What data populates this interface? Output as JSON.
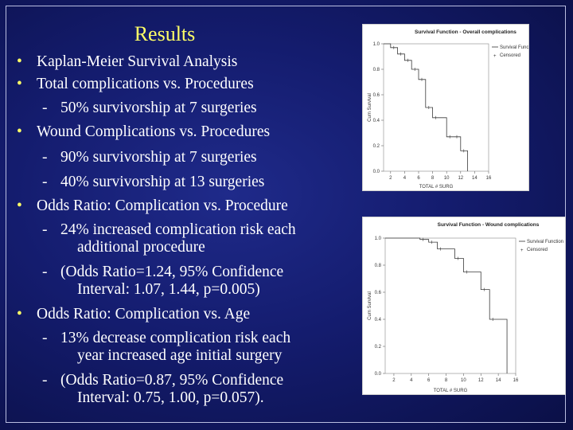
{
  "slide": {
    "title": "Results",
    "lines": {
      "b1": "Kaplan-Meier Survival Analysis",
      "b2": "Total complications vs. Procedures",
      "b2s1": "50% survivorship at 7 surgeries",
      "b3": "Wound Complications vs. Procedures",
      "b3s1": "90% survivorship at 7 surgeries",
      "b3s2": "40% survivorship at 13 surgeries",
      "b4": "Odds Ratio: Complication vs. Procedure",
      "b4s1a": "24% increased complication risk each",
      "b4s1b": "additional procedure",
      "b4s2a": "(Odds Ratio=1.24, 95% Confidence",
      "b4s2b": "Interval: 1.07, 1.44, p=0.005)",
      "b5": "Odds Ratio: Complication vs. Age",
      "b5s1a": "13% decrease complication risk each",
      "b5s1b": "year increased age initial surgery",
      "b5s2a": "(Odds Ratio=0.87, 95% Confidence",
      "b5s2b": "Interval: 0.75, 1.00, p=0.057)."
    },
    "bullet_char": "•",
    "dash_char": "-"
  },
  "chart_data": [
    {
      "type": "line",
      "title": "Survival Function - Overall complications",
      "xlabel": "TOTAL # SURG",
      "ylabel": "Cum Survival",
      "xlim": [
        1,
        16
      ],
      "ylim": [
        0,
        1.0
      ],
      "xticks": [
        "2",
        "4",
        "6",
        "8",
        "10",
        "12",
        "14",
        "16"
      ],
      "yticks": [
        "0.0",
        "0.2",
        "0.4",
        "0.6",
        "0.8",
        "1.0"
      ],
      "legend": [
        "Survival Function",
        "Censored"
      ],
      "legend_position": "top-right",
      "steps": [
        [
          1,
          1.0
        ],
        [
          2,
          0.97
        ],
        [
          3,
          0.92
        ],
        [
          4,
          0.87
        ],
        [
          5,
          0.8
        ],
        [
          6,
          0.72
        ],
        [
          7,
          0.5
        ],
        [
          8,
          0.42
        ],
        [
          10,
          0.27
        ],
        [
          11,
          0.27
        ],
        [
          12,
          0.16
        ],
        [
          13,
          0.0
        ]
      ]
    },
    {
      "type": "line",
      "title": "Survival Function - Wound complications",
      "xlabel": "TOTAL # SURG",
      "ylabel": "Cum Survival",
      "xlim": [
        1,
        16
      ],
      "ylim": [
        0,
        1.0
      ],
      "xticks": [
        "2",
        "4",
        "6",
        "8",
        "10",
        "12",
        "14",
        "16"
      ],
      "yticks": [
        "0.0",
        "0.2",
        "0.4",
        "0.6",
        "0.8",
        "1.0"
      ],
      "legend": [
        "Survival Function",
        "Censored"
      ],
      "legend_position": "top-right",
      "steps": [
        [
          1,
          1.0
        ],
        [
          5,
          0.99
        ],
        [
          6,
          0.97
        ],
        [
          7,
          0.92
        ],
        [
          9,
          0.85
        ],
        [
          10,
          0.75
        ],
        [
          12,
          0.62
        ],
        [
          13,
          0.4
        ],
        [
          15,
          0.0
        ]
      ]
    }
  ]
}
